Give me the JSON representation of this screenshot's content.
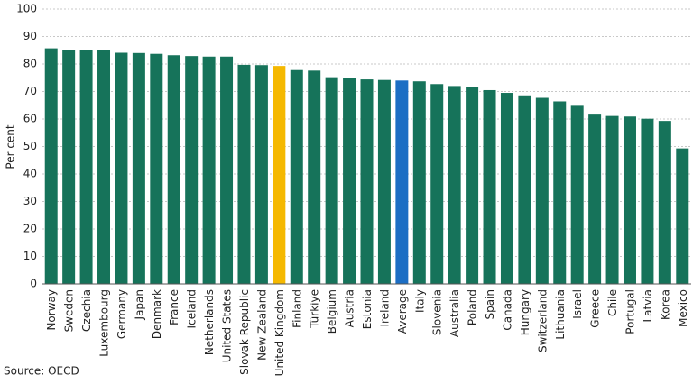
{
  "chart_data": {
    "type": "bar",
    "y_label": "Per cent",
    "source": "Source: OECD",
    "categories": [
      "Norway",
      "Sweden",
      "Czechia",
      "Luxembourg",
      "Germany",
      "Japan",
      "Denmark",
      "France",
      "Iceland",
      "Netherlands",
      "United States",
      "Slovak Republic",
      "New Zealand",
      "United Kingdom",
      "Finland",
      "Türkiye",
      "Belgium",
      "Austria",
      "Estonia",
      "Ireland",
      "Average",
      "Italy",
      "Slovenia",
      "Australia",
      "Poland",
      "Spain",
      "Canada",
      "Hungary",
      "Switzerland",
      "Lithuania",
      "Israel",
      "Greece",
      "Chile",
      "Portugal",
      "Latvia",
      "Korea",
      "Mexico"
    ],
    "values": [
      85.7,
      85.2,
      85.1,
      85.0,
      84.1,
      84.0,
      83.7,
      83.2,
      82.9,
      82.7,
      82.7,
      79.7,
      79.6,
      79.3,
      77.8,
      77.6,
      75.2,
      75.0,
      74.4,
      74.2,
      74.0,
      73.7,
      72.7,
      72.0,
      71.8,
      70.5,
      69.5,
      68.6,
      67.7,
      66.4,
      64.8,
      61.6,
      61.1,
      60.9,
      60.1,
      59.3,
      49.3
    ],
    "colors": [
      "#16735a",
      "#16735a",
      "#16735a",
      "#16735a",
      "#16735a",
      "#16735a",
      "#16735a",
      "#16735a",
      "#16735a",
      "#16735a",
      "#16735a",
      "#16735a",
      "#16735a",
      "#f5b800",
      "#16735a",
      "#16735a",
      "#16735a",
      "#16735a",
      "#16735a",
      "#16735a",
      "#1c6ec4",
      "#16735a",
      "#16735a",
      "#16735a",
      "#16735a",
      "#16735a",
      "#16735a",
      "#16735a",
      "#16735a",
      "#16735a",
      "#16735a",
      "#16735a",
      "#16735a",
      "#16735a",
      "#16735a",
      "#16735a",
      "#16735a"
    ],
    "ylim": [
      0,
      100
    ],
    "yticks": [
      0,
      10,
      20,
      30,
      40,
      50,
      60,
      70,
      80,
      90,
      100
    ],
    "grid": true
  }
}
